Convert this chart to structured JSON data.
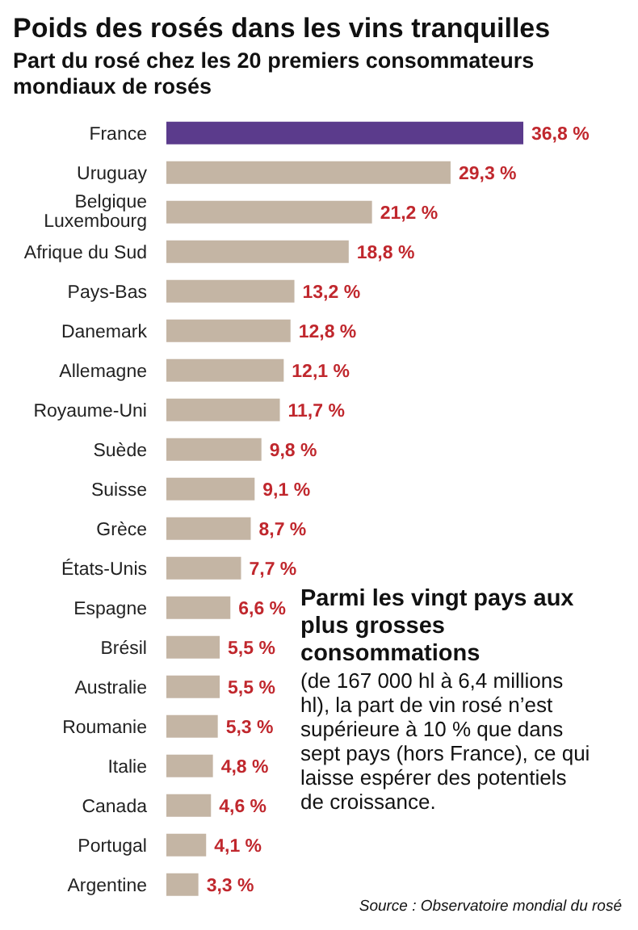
{
  "chart_data": {
    "type": "bar",
    "orientation": "horizontal",
    "title": "Poids des rosés dans les vins tranquilles",
    "subtitle": "Part du rosé chez les 20 premiers consommateurs mondiaux de rosés",
    "categories": [
      "France",
      "Uruguay",
      "Belgique Luxembourg",
      "Afrique du Sud",
      "Pays-Bas",
      "Danemark",
      "Allemagne",
      "Royaume-Uni",
      "Suède",
      "Suisse",
      "Grèce",
      "États-Unis",
      "Espagne",
      "Brésil",
      "Australie",
      "Roumanie",
      "Italie",
      "Canada",
      "Portugal",
      "Argentine"
    ],
    "values": [
      36.8,
      29.3,
      21.2,
      18.8,
      13.2,
      12.8,
      12.1,
      11.7,
      9.8,
      9.1,
      8.7,
      7.7,
      6.6,
      5.5,
      5.5,
      5.3,
      4.8,
      4.6,
      4.1,
      3.3
    ],
    "value_labels": [
      "36,8 %",
      "29,3 %",
      "21,2 %",
      "18,8 %",
      "13,2 %",
      "12,8 %",
      "12,1 %",
      "11,7 %",
      "9,8 %",
      "9,1 %",
      "8,7 %",
      "7,7 %",
      "6,6 %",
      "5,5 %",
      "5,5 %",
      "5,3 %",
      "4,8 %",
      "4,6 %",
      "4,1 %",
      "3,3 %"
    ],
    "colors": [
      "#5b3b8c",
      "#c4b5a4",
      "#c4b5a4",
      "#c4b5a4",
      "#c4b5a4",
      "#c4b5a4",
      "#c4b5a4",
      "#c4b5a4",
      "#c4b5a4",
      "#c4b5a4",
      "#c4b5a4",
      "#c4b5a4",
      "#c4b5a4",
      "#c4b5a4",
      "#c4b5a4",
      "#c4b5a4",
      "#c4b5a4",
      "#c4b5a4",
      "#c4b5a4",
      "#c4b5a4"
    ],
    "annotations": [
      "Parmi les vingt pays aux plus grosses consommations",
      "(de 167 000 hl à 6,4 millions hl), la part de vin rosé n’est supérieure à 10 % que dans sept pays (hors France), ce qui laisse espérer des potentiels de croissance.",
      "Source : Observatoire mondial du rosé"
    ]
  }
}
